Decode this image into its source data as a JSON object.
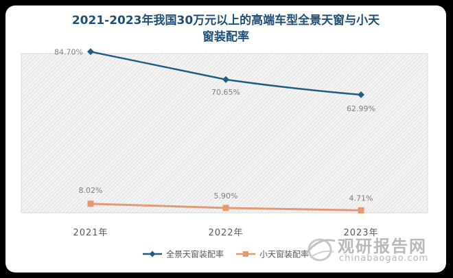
{
  "chart_data": {
    "type": "line",
    "title_line1": "2021-2023年我国30万元以上的高端车型全景天窗与小天",
    "title_line2": "窗装配率",
    "categories": [
      "2021年",
      "2022年",
      "2023年"
    ],
    "series": [
      {
        "name": "全景天窗装配率",
        "values": [
          84.7,
          70.65,
          62.99
        ],
        "labels": [
          "84.70%",
          "70.65%",
          "62.99%"
        ],
        "color": "#1f5f85",
        "marker": "diamond"
      },
      {
        "name": "小天窗装配率",
        "values": [
          8.02,
          5.9,
          4.71
        ],
        "labels": [
          "8.02%",
          "5.90%",
          "4.71%"
        ],
        "color": "#e39a72",
        "marker": "square"
      }
    ],
    "ylim": [
      0,
      90
    ],
    "grid": false,
    "legend_position": "bottom"
  },
  "watermark": {
    "cn": "观研报告网",
    "en": "chinabaogao.com",
    "icon": "globe-swoosh-logo"
  }
}
